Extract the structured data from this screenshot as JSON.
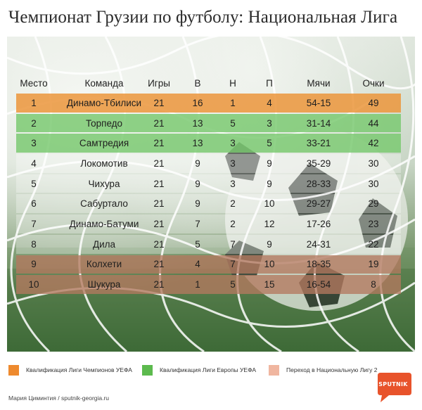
{
  "title": "Чемпионат Грузии по футболу: Национальная Лига",
  "headers": {
    "pos": "Место",
    "team": "Команда",
    "games": "Игры",
    "w": "В",
    "d": "Н",
    "l": "П",
    "goals": "Мячи",
    "pts": "Очки"
  },
  "rows": [
    {
      "pos": "1",
      "team": "Динамо-Тбилиси",
      "games": "21",
      "w": "16",
      "d": "1",
      "l": "4",
      "goals": "54-15",
      "pts": "49"
    },
    {
      "pos": "2",
      "team": "Торпедо",
      "games": "21",
      "w": "13",
      "d": "5",
      "l": "3",
      "goals": "31-14",
      "pts": "44"
    },
    {
      "pos": "3",
      "team": "Самтредия",
      "games": "21",
      "w": "13",
      "d": "3",
      "l": "5",
      "goals": "33-21",
      "pts": "42"
    },
    {
      "pos": "4",
      "team": "Локомотив",
      "games": "21",
      "w": "9",
      "d": "3",
      "l": "9",
      "goals": "35-29",
      "pts": "30"
    },
    {
      "pos": "5",
      "team": "Чихура",
      "games": "21",
      "w": "9",
      "d": "3",
      "l": "9",
      "goals": "28-33",
      "pts": "30"
    },
    {
      "pos": "6",
      "team": "Сабуртало",
      "games": "21",
      "w": "9",
      "d": "2",
      "l": "10",
      "goals": "29-27",
      "pts": "29"
    },
    {
      "pos": "7",
      "team": "Динамо-Батуми",
      "games": "21",
      "w": "7",
      "d": "2",
      "l": "12",
      "goals": "17-26",
      "pts": "23"
    },
    {
      "pos": "8",
      "team": "Дила",
      "games": "21",
      "w": "5",
      "d": "7",
      "l": "9",
      "goals": "24-31",
      "pts": "22"
    },
    {
      "pos": "9",
      "team": "Колхети",
      "games": "21",
      "w": "4",
      "d": "7",
      "l": "10",
      "goals": "18-35",
      "pts": "19"
    },
    {
      "pos": "10",
      "team": "Шукура",
      "games": "21",
      "w": "1",
      "d": "5",
      "l": "15",
      "goals": "16-54",
      "pts": "8"
    }
  ],
  "legend": [
    {
      "label": "Квалификация Лиги Чемпионов УЕФА",
      "color": "#ee8a2e"
    },
    {
      "label": "Квалификация Лиги Европы УЕФА",
      "color": "#5cba4e"
    },
    {
      "label": "Переход в Национальную Лигу 2",
      "color": "#f0b6a0"
    }
  ],
  "credit": "Мария Циминтия / sputnik-georgia.ru",
  "logo": {
    "text": "SPUTNIK",
    "color": "#e8532b"
  }
}
